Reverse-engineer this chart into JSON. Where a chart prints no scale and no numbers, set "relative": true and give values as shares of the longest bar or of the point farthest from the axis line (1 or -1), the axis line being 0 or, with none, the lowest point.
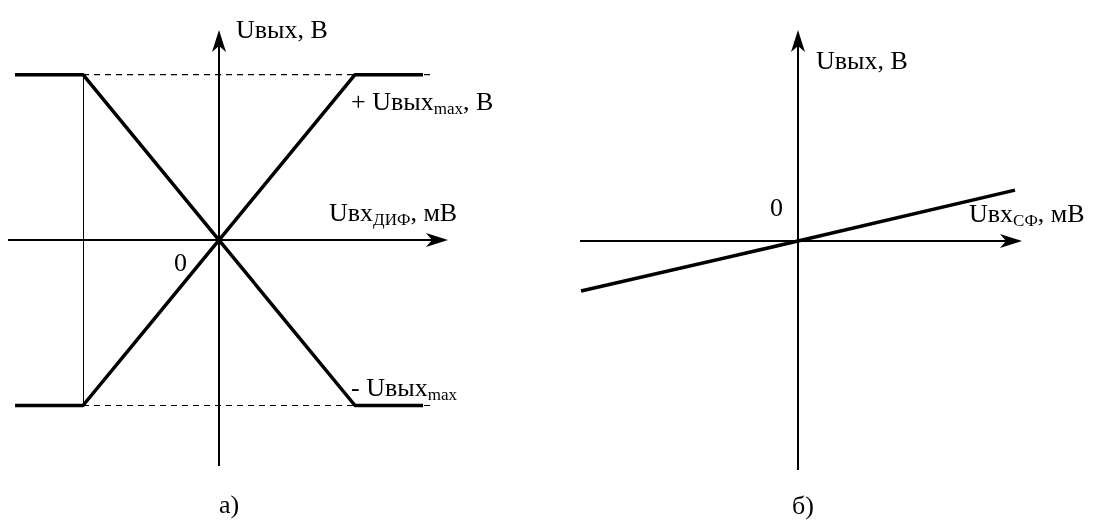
{
  "chart_data": [
    {
      "type": "line",
      "title": "а)",
      "xlabel": "Uвх$_{ДИФ}$, мВ",
      "ylabel": "Uвых, В",
      "relative": true,
      "marker": "none",
      "categories": [
        null,
        null,
        null,
        null,
        null,
        null,
        null
      ],
      "series": [
        {
          "color": "#000000",
          "values": [
            1,
            1,
            0.5,
            0,
            -0.5,
            -1,
            -1
          ]
        },
        {
          "color": "#000000",
          "values": [
            -1,
            -1,
            -0.5,
            0,
            0.5,
            1,
            1
          ]
        }
      ],
      "ref_lines": [
        {
          "axis": "y",
          "value": 1,
          "label": "+ Uвых$_{max}$, В",
          "line_style": "dashed"
        },
        {
          "axis": "y",
          "value": -1,
          "label": "- Uвых$_{max}$",
          "line_style": "dashed"
        }
      ],
      "annotations": [
        "0"
      ]
    },
    {
      "type": "line",
      "title": "б)",
      "xlabel": "Uвх$_{СФ}$, мВ",
      "ylabel": "Uвых, В",
      "relative": true,
      "marker": "none",
      "categories": [
        null,
        null,
        null
      ],
      "series": [
        {
          "color": "#000000",
          "values": [
            -0.98,
            0,
            1
          ]
        }
      ],
      "annotations": [
        "0"
      ]
    }
  ]
}
